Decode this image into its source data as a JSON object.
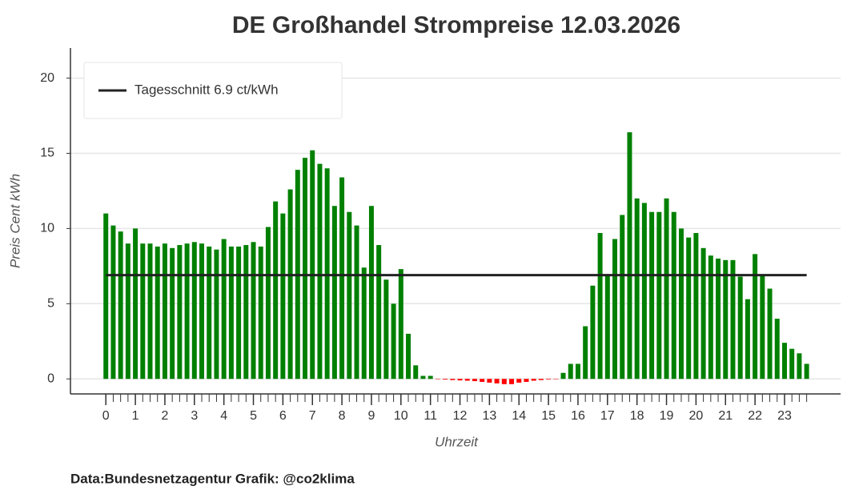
{
  "chart_data": {
    "type": "bar",
    "title": "DE Großhandel Strompreise 12.03.2026",
    "x_label": "Uhrzeit",
    "y_label": "Preis Cent kWh",
    "x": [
      0,
      0.25,
      0.5,
      0.75,
      1,
      1.25,
      1.5,
      1.75,
      2,
      2.25,
      2.5,
      2.75,
      3,
      3.25,
      3.5,
      3.75,
      4,
      4.25,
      4.5,
      4.75,
      5,
      5.25,
      5.5,
      5.75,
      6,
      6.25,
      6.5,
      6.75,
      7,
      7.25,
      7.5,
      7.75,
      8,
      8.25,
      8.5,
      8.75,
      9,
      9.25,
      9.5,
      9.75,
      10,
      10.25,
      10.5,
      10.75,
      11,
      11.25,
      11.5,
      11.75,
      12,
      12.25,
      12.5,
      12.75,
      13,
      13.25,
      13.5,
      13.75,
      14,
      14.25,
      14.5,
      14.75,
      15,
      15.25,
      15.5,
      15.75,
      16,
      16.25,
      16.5,
      16.75,
      17,
      17.25,
      17.5,
      17.75,
      18,
      18.25,
      18.5,
      18.75,
      19,
      19.25,
      19.5,
      19.75,
      20,
      20.25,
      20.5,
      20.75,
      21,
      21.25,
      21.5,
      21.75,
      22,
      22.25,
      22.5,
      22.75,
      23,
      23.25,
      23.5,
      23.75
    ],
    "values": [
      11.0,
      10.2,
      9.8,
      9.0,
      10.0,
      9.0,
      9.0,
      8.8,
      9.0,
      8.7,
      8.9,
      9.0,
      9.1,
      9.0,
      8.8,
      8.6,
      9.3,
      8.8,
      8.8,
      8.9,
      9.1,
      8.8,
      10.1,
      11.8,
      11.0,
      12.6,
      13.9,
      14.7,
      15.2,
      14.3,
      14.0,
      11.5,
      13.4,
      11.1,
      10.2,
      7.4,
      11.5,
      8.9,
      6.6,
      5.0,
      7.3,
      3.0,
      0.9,
      0.2,
      0.2,
      -0.02,
      -0.05,
      -0.08,
      -0.1,
      -0.12,
      -0.15,
      -0.2,
      -0.25,
      -0.3,
      -0.35,
      -0.35,
      -0.25,
      -0.2,
      -0.12,
      -0.08,
      -0.04,
      -0.02,
      0.4,
      1.0,
      1.0,
      3.5,
      6.2,
      9.7,
      6.9,
      9.3,
      10.9,
      16.4,
      12.0,
      11.7,
      11.1,
      11.1,
      12.0,
      11.1,
      10.0,
      9.4,
      9.7,
      8.7,
      8.2,
      8.0,
      7.9,
      7.9,
      6.8,
      5.3,
      8.3,
      6.9,
      6.0,
      4.0,
      2.4,
      2.0,
      1.7,
      1.0
    ],
    "color": "#008000",
    "negative_color": "#ff0000",
    "mean_line": {
      "name": "Tagesschnitt 6.9 ct/kWh",
      "value": 6.9,
      "color": "#222222"
    },
    "legend": "upper left",
    "xlim": [
      -1.2,
      24.9
    ],
    "xticks": [
      0,
      1,
      2,
      3,
      4,
      5,
      6,
      7,
      8,
      9,
      10,
      11,
      12,
      13,
      14,
      15,
      16,
      17,
      18,
      19,
      20,
      21,
      22,
      23
    ],
    "ylim": [
      -1,
      22
    ],
    "yticks": [
      0,
      5,
      10,
      15,
      20
    ],
    "grid": true,
    "source": "Data:Bundesnetzagentur Grafik: @co2klima"
  }
}
